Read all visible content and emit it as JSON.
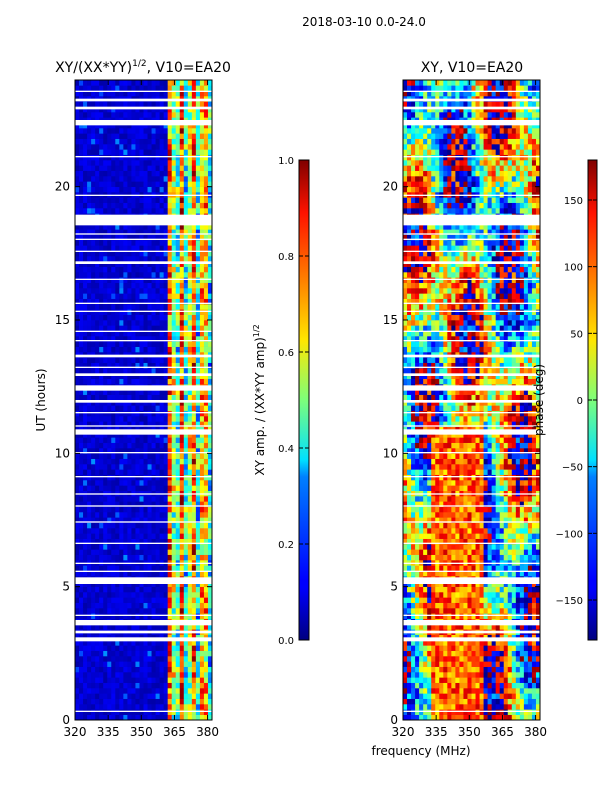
{
  "figure_title": "2018-03-10 0.0-24.0",
  "chart_data": [
    {
      "type": "heatmap",
      "title": "XY/(XX*YY)",
      "title_exponent": "1/2",
      "title_suffix": ", V10=EA20",
      "ylabel": "UT (hours)",
      "xlabel": "",
      "xlim": [
        320,
        382
      ],
      "ylim": [
        0,
        24
      ],
      "xticks": [
        "320",
        "335",
        "350",
        "365",
        "380"
      ],
      "xtick_values": [
        320,
        335,
        350,
        365,
        380
      ],
      "yticks": [
        "0",
        "5",
        "10",
        "15",
        "20"
      ],
      "ytick_values": [
        0,
        5,
        10,
        15,
        20
      ],
      "colorbar": {
        "label": "XY amp. / (XX*YY amp)",
        "label_exponent": "1/2",
        "range": [
          0.0,
          1.0
        ],
        "ticks": [
          "0.0",
          "0.2",
          "0.4",
          "0.6",
          "0.8",
          "1.0"
        ],
        "tick_values": [
          0.0,
          0.2,
          0.4,
          0.6,
          0.8,
          1.0
        ]
      },
      "gaps_ut": [
        [
          0.3,
          0.35
        ],
        [
          2.95,
          3.1
        ],
        [
          3.25,
          3.35
        ],
        [
          3.55,
          3.75
        ],
        [
          3.9,
          3.95
        ],
        [
          5.1,
          5.35
        ],
        [
          5.55,
          5.6
        ],
        [
          5.85,
          5.9
        ],
        [
          6.6,
          6.65
        ],
        [
          7.4,
          7.45
        ],
        [
          8.0,
          8.05
        ],
        [
          8.45,
          8.5
        ],
        [
          9.1,
          9.15
        ],
        [
          10.0,
          10.05
        ],
        [
          10.7,
          10.9
        ],
        [
          11.0,
          11.05
        ],
        [
          11.5,
          11.55
        ],
        [
          11.9,
          12.0
        ],
        [
          12.35,
          12.55
        ],
        [
          12.9,
          13.0
        ],
        [
          13.2,
          13.25
        ],
        [
          13.6,
          13.7
        ],
        [
          14.2,
          14.25
        ],
        [
          14.55,
          14.6
        ],
        [
          15.3,
          15.35
        ],
        [
          15.6,
          15.65
        ],
        [
          16.5,
          16.55
        ],
        [
          17.1,
          17.2
        ],
        [
          17.55,
          17.6
        ],
        [
          18.0,
          18.05
        ],
        [
          18.2,
          18.25
        ],
        [
          18.55,
          18.95
        ],
        [
          19.65,
          19.7
        ],
        [
          21.1,
          21.15
        ],
        [
          22.3,
          22.5
        ],
        [
          22.9,
          23.0
        ],
        [
          23.2,
          23.3
        ],
        [
          23.55,
          23.6
        ]
      ]
    },
    {
      "type": "heatmap",
      "title": "XY, V10=EA20",
      "xlabel": "frequency (MHz)",
      "xlim": [
        320,
        382
      ],
      "ylim": [
        0,
        24
      ],
      "xticks": [
        "320",
        "335",
        "350",
        "365",
        "380"
      ],
      "xtick_values": [
        320,
        335,
        350,
        365,
        380
      ],
      "yticks": [
        "0",
        "5",
        "10",
        "15",
        "20"
      ],
      "ytick_values": [
        0,
        5,
        10,
        15,
        20
      ],
      "colorbar": {
        "label": "phase (deg)",
        "range": [
          -180,
          180
        ],
        "ticks": [
          "−150",
          "−100",
          "−50",
          "0",
          "50",
          "100",
          "150"
        ],
        "tick_values": [
          -150,
          -100,
          -50,
          0,
          50,
          100,
          150
        ]
      }
    }
  ]
}
